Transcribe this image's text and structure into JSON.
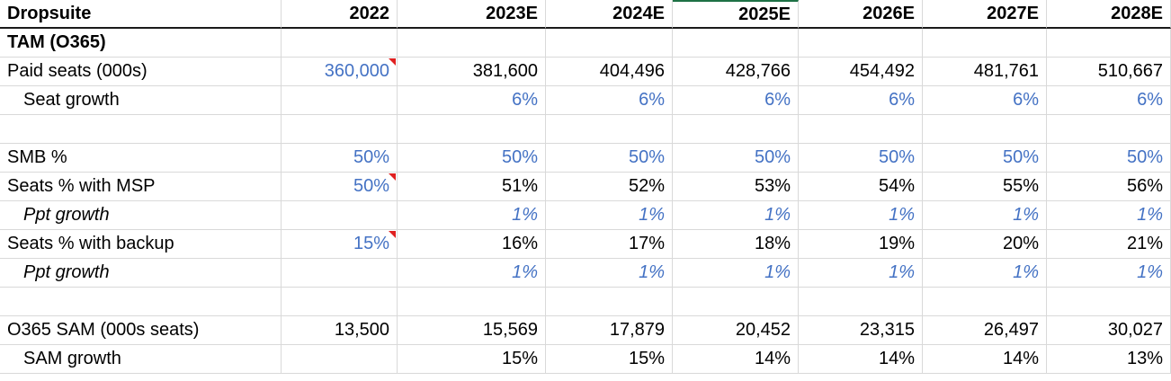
{
  "header": {
    "title": "Dropsuite",
    "years": [
      "2022",
      "2023E",
      "2024E",
      "2025E",
      "2026E",
      "2027E",
      "2028E"
    ]
  },
  "rows": [
    {
      "label": "TAM (O365)",
      "values": [
        "",
        "",
        "",
        "",
        "",
        "",
        ""
      ]
    },
    {
      "label": "Paid seats (000s)",
      "values": [
        "360,000",
        "381,600",
        "404,496",
        "428,766",
        "454,492",
        "481,761",
        "510,667"
      ]
    },
    {
      "label": "Seat growth",
      "values": [
        "",
        "6%",
        "6%",
        "6%",
        "6%",
        "6%",
        "6%"
      ]
    },
    {
      "label": "",
      "values": [
        "",
        "",
        "",
        "",
        "",
        "",
        ""
      ]
    },
    {
      "label": "SMB %",
      "values": [
        "50%",
        "50%",
        "50%",
        "50%",
        "50%",
        "50%",
        "50%"
      ]
    },
    {
      "label": "Seats % with MSP",
      "values": [
        "50%",
        "51%",
        "52%",
        "53%",
        "54%",
        "55%",
        "56%"
      ]
    },
    {
      "label": "Ppt growth",
      "values": [
        "",
        "1%",
        "1%",
        "1%",
        "1%",
        "1%",
        "1%"
      ]
    },
    {
      "label": "Seats % with backup",
      "values": [
        "15%",
        "16%",
        "17%",
        "18%",
        "19%",
        "20%",
        "21%"
      ]
    },
    {
      "label": "Ppt growth",
      "values": [
        "",
        "1%",
        "1%",
        "1%",
        "1%",
        "1%",
        "1%"
      ]
    },
    {
      "label": "",
      "values": [
        "",
        "",
        "",
        "",
        "",
        "",
        ""
      ]
    },
    {
      "label": "O365 SAM (000s seats)",
      "values": [
        "13,500",
        "15,569",
        "17,879",
        "20,452",
        "23,315",
        "26,497",
        "30,027"
      ]
    },
    {
      "label": "SAM growth",
      "values": [
        "",
        "15%",
        "15%",
        "14%",
        "14%",
        "14%",
        "13%"
      ]
    }
  ],
  "colors": {
    "input_blue": "#4472c4",
    "comment_flag": "#e02020",
    "gridline": "#d9d9d9",
    "selection": "#1e7145"
  }
}
